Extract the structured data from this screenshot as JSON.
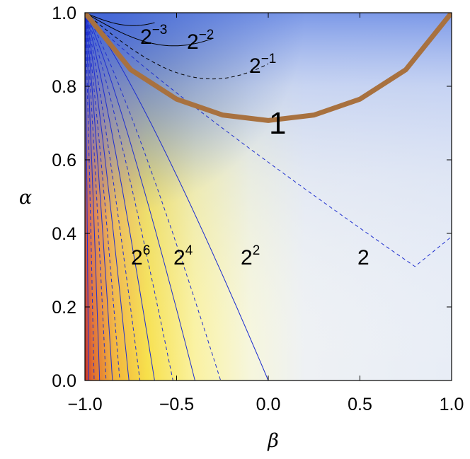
{
  "chart_data": {
    "type": "heatmap",
    "xlabel": "β",
    "ylabel": "α",
    "xlim": [
      -1.0,
      1.0
    ],
    "ylim": [
      0.0,
      1.0
    ],
    "x_ticks": [
      "-1.0",
      "-0.5",
      "0.0",
      "0.5",
      "1.0"
    ],
    "y_ticks": [
      "0.0",
      "0.2",
      "0.4",
      "0.6",
      "0.8",
      "1.0"
    ],
    "colormap": {
      "low": "#4a6fdc",
      "mid": "#f2f4f6",
      "high": "#f5e94a",
      "extreme": "#c62828"
    },
    "contour_levels": [
      {
        "label_base": "2",
        "label_exp": "−3",
        "value": 0.125,
        "style": "solid",
        "color": "#000000"
      },
      {
        "label_base": "2",
        "label_exp": "−2",
        "value": 0.25,
        "style": "solid",
        "color": "#000000"
      },
      {
        "label_base": "2",
        "label_exp": "−1",
        "value": 0.5,
        "style": "dashed",
        "color": "#000000"
      },
      {
        "label_base": "1",
        "label_exp": "",
        "value": 1,
        "style": "thick",
        "color": "#a8713f"
      },
      {
        "label_base": "2",
        "label_exp": "",
        "value": 2,
        "style": "dashed",
        "color": "#2233dd"
      },
      {
        "label_base": "2",
        "label_exp": "2",
        "value": 4,
        "style": "solid",
        "color": "#2233dd"
      },
      {
        "label_base": "2",
        "label_exp": "4",
        "value": 16,
        "style": "solid",
        "color": "#2233dd"
      },
      {
        "label_base": "2",
        "label_exp": "6",
        "value": 64,
        "style": "solid",
        "color": "#2233dd"
      }
    ],
    "unit_contour": {
      "label": "1",
      "points": [
        [
          -1.0,
          1.0
        ],
        [
          -0.75,
          0.845
        ],
        [
          -0.5,
          0.765
        ],
        [
          -0.25,
          0.722
        ],
        [
          0.0,
          0.707
        ],
        [
          0.25,
          0.722
        ],
        [
          0.5,
          0.765
        ],
        [
          0.75,
          0.845
        ],
        [
          1.0,
          1.0
        ]
      ]
    }
  }
}
